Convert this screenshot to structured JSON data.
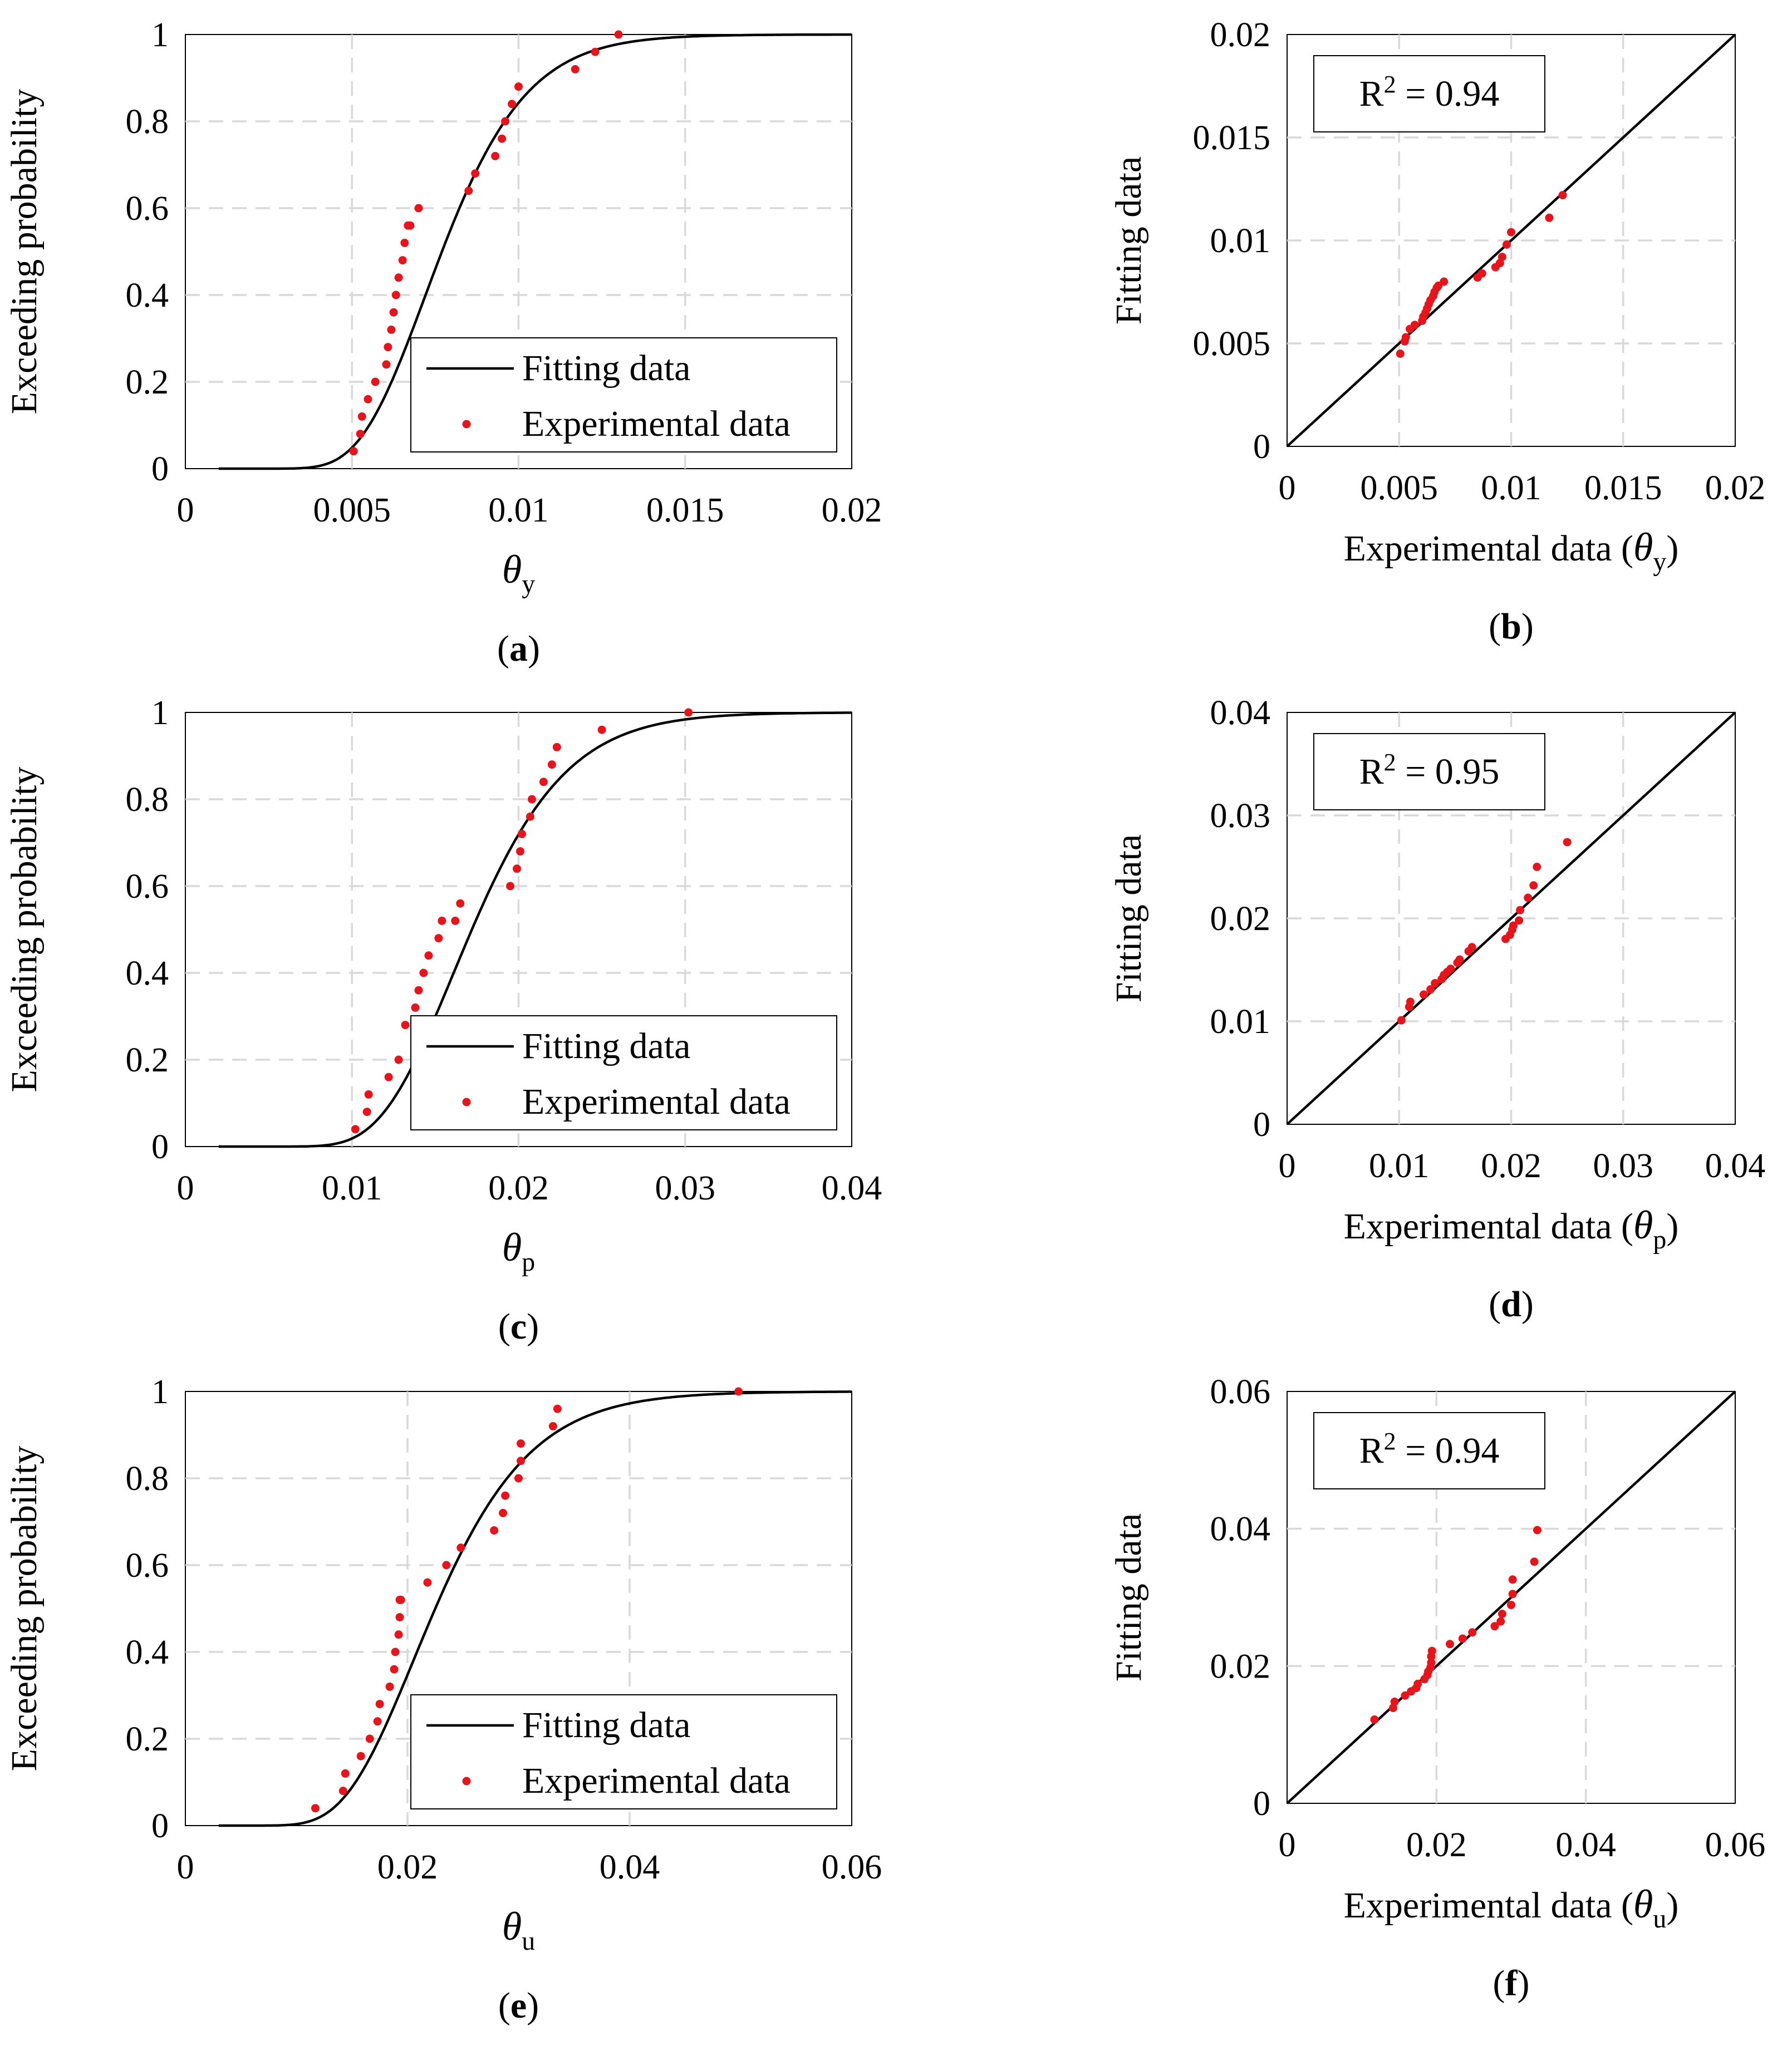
{
  "colors": {
    "fit_line": "#000000",
    "points": "#e8141c",
    "grid": "#d9d9d9",
    "axis": "#000000",
    "legend_border": "#000000"
  },
  "legend": {
    "fit_label": "Fitting data",
    "exp_label": "Experimental data"
  },
  "chart_data": [
    {
      "id": "a",
      "panel_label": "a",
      "type": "line+scatter",
      "xlim": [
        0,
        0.02
      ],
      "ylim": [
        0,
        1
      ],
      "xticks": [
        "0",
        "0.005",
        "0.01",
        "0.015",
        "0.02"
      ],
      "yticks": [
        "0",
        "0.2",
        "0.4",
        "0.6",
        "0.8",
        "1"
      ],
      "ylabel": "Exceeding probability",
      "xlabel_symbol": "θ",
      "xlabel_sub": "y",
      "fit": {
        "name": "Fitting data",
        "distribution": "lognormal",
        "median": 0.0077,
        "sigma": 0.26,
        "x_start": 0.001,
        "x_end": 0.02
      },
      "experimental": {
        "name": "Experimental data",
        "x": [
          0.00505,
          0.00525,
          0.0053,
          0.00548,
          0.0057,
          0.00603,
          0.00608,
          0.00618,
          0.00625,
          0.00632,
          0.0064,
          0.00652,
          0.00658,
          0.00668,
          0.00675,
          0.007,
          0.0085,
          0.0087,
          0.0093,
          0.0095,
          0.0096,
          0.0098,
          0.01,
          0.0117,
          0.0123,
          0.013
        ],
        "y": [
          0.04,
          0.08,
          0.12,
          0.16,
          0.2,
          0.24,
          0.28,
          0.32,
          0.36,
          0.4,
          0.44,
          0.48,
          0.52,
          0.56,
          0.56,
          0.6,
          0.64,
          0.68,
          0.72,
          0.76,
          0.8,
          0.84,
          0.88,
          0.92,
          0.96,
          1.0
        ]
      }
    },
    {
      "id": "b",
      "panel_label": "b",
      "type": "scatter",
      "xlim": [
        0,
        0.02
      ],
      "ylim": [
        0,
        0.02
      ],
      "xticks": [
        "0",
        "0.005",
        "0.01",
        "0.015",
        "0.02"
      ],
      "yticks": [
        "0",
        "0.005",
        "0.01",
        "0.015",
        "0.02"
      ],
      "ylabel": "Fitting data",
      "xlabel_text": "Experimental data (",
      "xlabel_symbol": "θ",
      "xlabel_sub": "y",
      "xlabel_close": ")",
      "r2_label": "R",
      "r2_sup": "2",
      "r2_value": " = 0.94",
      "reference_line": {
        "x": [
          0,
          0.02
        ],
        "y": [
          0,
          0.02
        ]
      },
      "experimental": {
        "name": "Experimental data",
        "x": [
          0.00505,
          0.00525,
          0.0053,
          0.00548,
          0.0057,
          0.00603,
          0.00608,
          0.00618,
          0.00625,
          0.00632,
          0.0064,
          0.00652,
          0.00658,
          0.00668,
          0.00675,
          0.007,
          0.0085,
          0.0087,
          0.0093,
          0.0095,
          0.0096,
          0.0098,
          0.01,
          0.0117,
          0.0123
        ],
        "y": [
          0.0045,
          0.0051,
          0.0053,
          0.0057,
          0.0059,
          0.0061,
          0.0063,
          0.0065,
          0.0067,
          0.0069,
          0.0071,
          0.0073,
          0.0075,
          0.0077,
          0.0078,
          0.008,
          0.0082,
          0.0084,
          0.0087,
          0.0089,
          0.0092,
          0.0098,
          0.0104,
          0.0111,
          0.0122
        ]
      }
    },
    {
      "id": "c",
      "panel_label": "c",
      "type": "line+scatter",
      "xlim": [
        0,
        0.04
      ],
      "ylim": [
        0,
        1
      ],
      "xticks": [
        "0",
        "0.01",
        "0.02",
        "0.03",
        "0.04"
      ],
      "yticks": [
        "0",
        "0.2",
        "0.4",
        "0.6",
        "0.8",
        "1"
      ],
      "ylabel": "Exceeding probability",
      "xlabel_symbol": "θ",
      "xlabel_sub": "p",
      "fit": {
        "name": "Fitting data",
        "distribution": "lognormal",
        "median": 0.0172,
        "sigma": 0.26,
        "x_start": 0.002,
        "x_end": 0.04
      },
      "experimental": {
        "name": "Experimental data",
        "x": [
          0.0102,
          0.0109,
          0.011,
          0.0122,
          0.0128,
          0.0132,
          0.0138,
          0.014,
          0.0143,
          0.0146,
          0.0152,
          0.0154,
          0.0162,
          0.0165,
          0.0195,
          0.0199,
          0.0201,
          0.0202,
          0.0207,
          0.0208,
          0.0215,
          0.022,
          0.0223,
          0.025,
          0.0302
        ],
        "y": [
          0.04,
          0.08,
          0.12,
          0.16,
          0.2,
          0.28,
          0.32,
          0.36,
          0.4,
          0.44,
          0.48,
          0.52,
          0.52,
          0.56,
          0.6,
          0.64,
          0.68,
          0.72,
          0.76,
          0.8,
          0.84,
          0.88,
          0.92,
          0.96,
          1.0
        ]
      }
    },
    {
      "id": "d",
      "panel_label": "d",
      "type": "scatter",
      "xlim": [
        0,
        0.04
      ],
      "ylim": [
        0,
        0.04
      ],
      "xticks": [
        "0",
        "0.01",
        "0.02",
        "0.03",
        "0.04"
      ],
      "yticks": [
        "0",
        "0.01",
        "0.02",
        "0.03",
        "0.04"
      ],
      "ylabel": "Fitting data",
      "xlabel_text": "Experimental data (",
      "xlabel_symbol": "θ",
      "xlabel_sub": "p",
      "xlabel_close": ")",
      "r2_label": "R",
      "r2_sup": "2",
      "r2_value": " = 0.95",
      "reference_line": {
        "x": [
          0,
          0.04
        ],
        "y": [
          0,
          0.04
        ]
      },
      "experimental": {
        "name": "Experimental data",
        "x": [
          0.0102,
          0.0109,
          0.011,
          0.0122,
          0.0128,
          0.0132,
          0.0138,
          0.014,
          0.0143,
          0.0146,
          0.0152,
          0.0154,
          0.0162,
          0.0165,
          0.0195,
          0.0199,
          0.0201,
          0.0202,
          0.0207,
          0.0208,
          0.0215,
          0.022,
          0.0223,
          0.025
        ],
        "y": [
          0.0101,
          0.0114,
          0.0119,
          0.0126,
          0.0131,
          0.0137,
          0.0141,
          0.0145,
          0.0148,
          0.0151,
          0.0157,
          0.016,
          0.0168,
          0.0172,
          0.018,
          0.0184,
          0.0189,
          0.0193,
          0.0198,
          0.0208,
          0.022,
          0.0232,
          0.025,
          0.0274
        ]
      }
    },
    {
      "id": "e",
      "panel_label": "e",
      "type": "line+scatter",
      "xlim": [
        0,
        0.06
      ],
      "ylim": [
        0,
        1
      ],
      "xticks": [
        "0",
        "0.02",
        "0.04",
        "0.06"
      ],
      "yticks": [
        "0",
        "0.2",
        "0.4",
        "0.6",
        "0.8",
        "1"
      ],
      "ylabel": "Exceeding probability",
      "xlabel_symbol": "θ",
      "xlabel_sub": "u",
      "fit": {
        "name": "Fitting data",
        "distribution": "lognormal",
        "median": 0.0225,
        "sigma": 0.3,
        "x_start": 0.003,
        "x_end": 0.06
      },
      "experimental": {
        "name": "Experimental data",
        "x": [
          0.0117,
          0.0142,
          0.0144,
          0.0158,
          0.0166,
          0.0173,
          0.0175,
          0.0184,
          0.0188,
          0.0189,
          0.0192,
          0.0193,
          0.0193,
          0.0194,
          0.0218,
          0.0235,
          0.0248,
          0.0278,
          0.0286,
          0.0288,
          0.03,
          0.0302,
          0.0302,
          0.0331,
          0.0335,
          0.0498
        ],
        "y": [
          0.04,
          0.08,
          0.12,
          0.16,
          0.2,
          0.24,
          0.28,
          0.32,
          0.36,
          0.4,
          0.44,
          0.48,
          0.52,
          0.52,
          0.56,
          0.6,
          0.64,
          0.68,
          0.72,
          0.76,
          0.8,
          0.84,
          0.88,
          0.92,
          0.96,
          1.0
        ]
      }
    },
    {
      "id": "f",
      "panel_label": "f",
      "type": "scatter",
      "xlim": [
        0,
        0.06
      ],
      "ylim": [
        0,
        0.06
      ],
      "xticks": [
        "0",
        "0.02",
        "0.04",
        "0.06"
      ],
      "yticks": [
        "0",
        "0.02",
        "0.04",
        "0.06"
      ],
      "ylabel": "Fitting data",
      "xlabel_text": "Experimental data (",
      "xlabel_symbol": "θ",
      "xlabel_sub": "u",
      "xlabel_close": ")",
      "r2_label": "R",
      "r2_sup": "2",
      "r2_value": " = 0.94",
      "reference_line": {
        "x": [
          0,
          0.06
        ],
        "y": [
          0,
          0.06
        ]
      },
      "experimental": {
        "name": "Experimental data",
        "x": [
          0.0117,
          0.0142,
          0.0144,
          0.0158,
          0.0166,
          0.0173,
          0.0175,
          0.0184,
          0.0188,
          0.0189,
          0.0192,
          0.0193,
          0.0193,
          0.0194,
          0.0218,
          0.0235,
          0.0248,
          0.0278,
          0.0286,
          0.0288,
          0.03,
          0.0302,
          0.0302,
          0.0331,
          0.0335
        ],
        "y": [
          0.0122,
          0.0139,
          0.0148,
          0.0157,
          0.0163,
          0.0168,
          0.0174,
          0.0181,
          0.0187,
          0.0192,
          0.0198,
          0.0205,
          0.0214,
          0.0222,
          0.0232,
          0.024,
          0.0249,
          0.0258,
          0.0265,
          0.0276,
          0.0289,
          0.0305,
          0.0326,
          0.0352,
          0.0398
        ]
      }
    }
  ]
}
